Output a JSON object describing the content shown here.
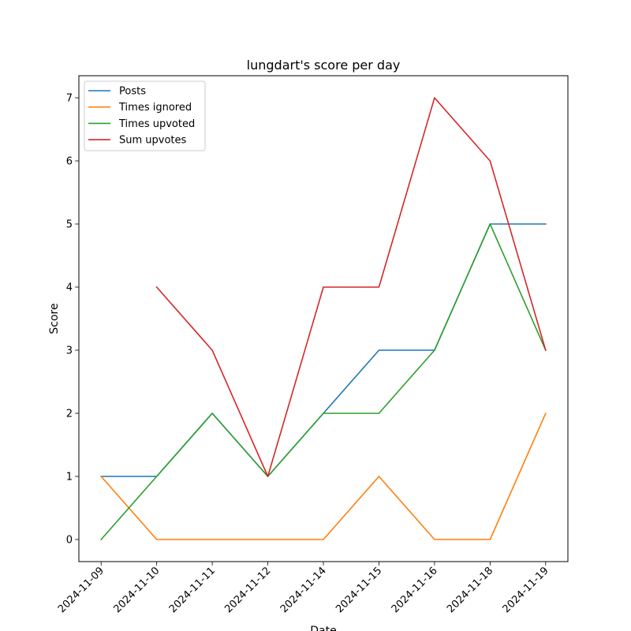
{
  "chart_data": {
    "type": "line",
    "title": "lungdart's score per day",
    "xlabel": "Date",
    "ylabel": "Score",
    "categories": [
      "2024-11-09",
      "2024-11-10",
      "2024-11-11",
      "2024-11-12",
      "2024-11-14",
      "2024-11-15",
      "2024-11-16",
      "2024-11-18",
      "2024-11-19"
    ],
    "yticks": [
      0,
      1,
      2,
      3,
      4,
      5,
      6,
      7
    ],
    "ylim": [
      -0.35,
      7.35
    ],
    "grid": false,
    "legend_position": "top-left",
    "series": [
      {
        "name": "Posts",
        "color": "#1f77b4",
        "values": [
          1,
          1,
          2,
          1,
          2,
          3,
          3,
          5,
          5
        ]
      },
      {
        "name": "Times ignored",
        "color": "#ff7f0e",
        "values": [
          1,
          0,
          0,
          0,
          0,
          1,
          0,
          0,
          2
        ]
      },
      {
        "name": "Times upvoted",
        "color": "#2ca02c",
        "values": [
          0,
          1,
          2,
          1,
          2,
          2,
          3,
          5,
          3
        ]
      },
      {
        "name": "Sum upvotes",
        "color": "#d62728",
        "values": [
          null,
          4,
          3,
          1,
          4,
          4,
          7,
          6,
          3
        ]
      }
    ]
  }
}
